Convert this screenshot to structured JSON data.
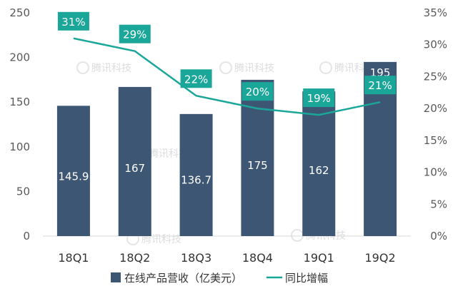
{
  "watermark": "腾讯科技",
  "chart_data": {
    "type": "bar+line",
    "categories": [
      "18Q1",
      "18Q2",
      "18Q3",
      "18Q4",
      "19Q1",
      "19Q2"
    ],
    "bar_series": {
      "name": "在线产品营收（亿美元）",
      "values": [
        145.9,
        167,
        136.7,
        175,
        162,
        195
      ],
      "labels": [
        "145.9",
        "167",
        "136.7",
        "175",
        "162",
        "195"
      ],
      "color": "#3d5673"
    },
    "line_series": {
      "name": "同比增幅",
      "values": [
        31,
        29,
        22,
        20,
        19,
        21
      ],
      "labels": [
        "31%",
        "29%",
        "22%",
        "20%",
        "19%",
        "21%"
      ],
      "color": "#1aa79a"
    },
    "y_left": {
      "min": 0,
      "max": 250,
      "step": 50,
      "ticks": [
        "0",
        "50",
        "100",
        "150",
        "200",
        "250"
      ]
    },
    "y_right": {
      "min": 0,
      "max": 35,
      "step": 5,
      "ticks": [
        "0%",
        "5%",
        "10%",
        "15%",
        "20%",
        "25%",
        "30%",
        "35%"
      ]
    },
    "legend": {
      "position": "bottom"
    },
    "grid": false
  }
}
